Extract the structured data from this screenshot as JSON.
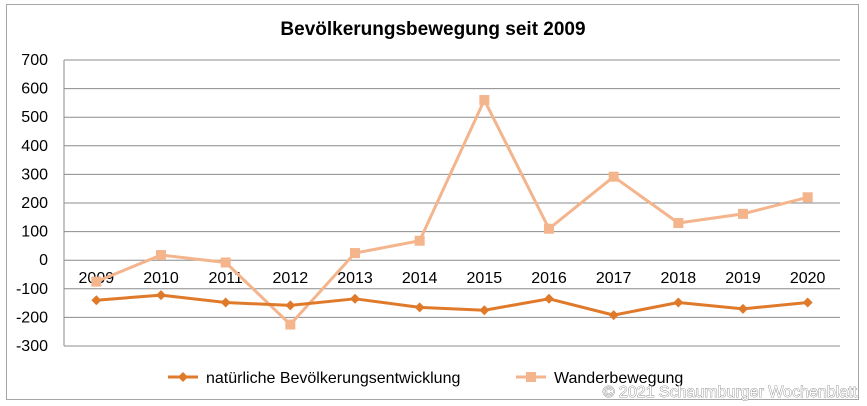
{
  "chart_data": {
    "type": "line",
    "title": "Bevölkerungsbewegung seit 2009",
    "categories": [
      "2009",
      "2010",
      "2011",
      "2012",
      "2013",
      "2014",
      "2015",
      "2016",
      "2017",
      "2018",
      "2019",
      "2020"
    ],
    "series": [
      {
        "name": "natürliche Bevölkerungsentwicklung",
        "color": "#e07a2b",
        "marker": "diamond",
        "values": [
          -140,
          -122,
          -148,
          -158,
          -135,
          -165,
          -175,
          -135,
          -192,
          -148,
          -170,
          -148
        ]
      },
      {
        "name": "Wanderbewegung",
        "color": "#f4b48c",
        "marker": "square",
        "values": [
          -75,
          18,
          -8,
          -225,
          25,
          68,
          560,
          110,
          292,
          130,
          162,
          220
        ]
      }
    ],
    "ylim": [
      -300,
      700
    ],
    "yticks": [
      -300,
      -200,
      -100,
      0,
      100,
      200,
      300,
      400,
      500,
      600,
      700
    ],
    "ytick_labels": [
      "-300",
      "-200",
      "-100",
      "0",
      "100",
      "200",
      "300",
      "400",
      "500",
      "600",
      "700"
    ],
    "grid": true,
    "legend": "bottom"
  },
  "watermark": "© 2021 Schaumburger Wochenblatt"
}
